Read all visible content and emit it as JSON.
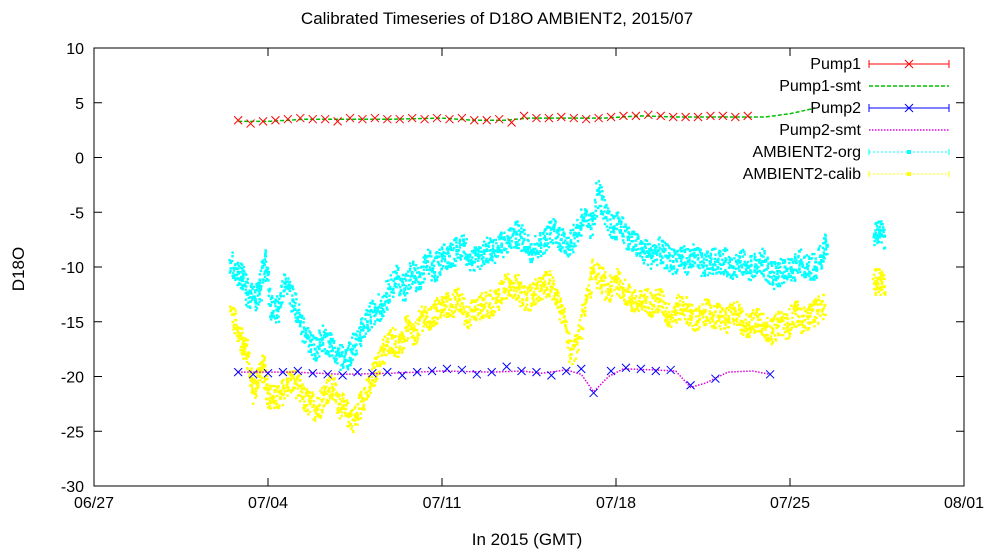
{
  "chart_data": {
    "type": "scatter",
    "title": "Calibrated Timeseries of D18O AMBIENT2, 2015/07",
    "xlabel": "In 2015 (GMT)",
    "ylabel": "D18O",
    "x_range_days": [
      0,
      35
    ],
    "xticks": [
      {
        "day": 0,
        "label": "06/27"
      },
      {
        "day": 7,
        "label": "07/04"
      },
      {
        "day": 14,
        "label": "07/11"
      },
      {
        "day": 21,
        "label": "07/18"
      },
      {
        "day": 28,
        "label": "07/25"
      },
      {
        "day": 35,
        "label": "08/01"
      }
    ],
    "ylim": [
      -30,
      10
    ],
    "yticks": [
      10,
      5,
      0,
      -5,
      -10,
      -15,
      -20,
      -25,
      -30
    ],
    "grid": false,
    "legend_position": "top-right",
    "series": [
      {
        "name": "Pump1",
        "style": "x-marker-errorbar",
        "color": "#ff0000",
        "points": [
          [
            5.8,
            3.4
          ],
          [
            6.3,
            3.1
          ],
          [
            6.8,
            3.3
          ],
          [
            7.3,
            3.4
          ],
          [
            7.8,
            3.5
          ],
          [
            8.3,
            3.6
          ],
          [
            8.8,
            3.5
          ],
          [
            9.3,
            3.5
          ],
          [
            9.8,
            3.3
          ],
          [
            10.3,
            3.6
          ],
          [
            10.8,
            3.5
          ],
          [
            11.3,
            3.6
          ],
          [
            11.8,
            3.5
          ],
          [
            12.3,
            3.5
          ],
          [
            12.8,
            3.6
          ],
          [
            13.3,
            3.5
          ],
          [
            13.8,
            3.6
          ],
          [
            14.3,
            3.5
          ],
          [
            14.8,
            3.6
          ],
          [
            15.3,
            3.4
          ],
          [
            15.8,
            3.4
          ],
          [
            16.3,
            3.5
          ],
          [
            16.8,
            3.2
          ],
          [
            17.3,
            3.8
          ],
          [
            17.8,
            3.6
          ],
          [
            18.3,
            3.6
          ],
          [
            18.8,
            3.7
          ],
          [
            19.3,
            3.6
          ],
          [
            19.8,
            3.5
          ],
          [
            20.3,
            3.6
          ],
          [
            20.8,
            3.7
          ],
          [
            21.3,
            3.8
          ],
          [
            21.8,
            3.8
          ],
          [
            22.3,
            3.9
          ],
          [
            22.8,
            3.8
          ],
          [
            23.3,
            3.7
          ],
          [
            23.8,
            3.7
          ],
          [
            24.3,
            3.7
          ],
          [
            24.8,
            3.8
          ],
          [
            25.3,
            3.8
          ],
          [
            25.8,
            3.7
          ],
          [
            26.3,
            3.8
          ]
        ]
      },
      {
        "name": "Pump1-smt",
        "style": "dashed-line",
        "color": "#00c000",
        "points": [
          [
            5.8,
            3.3
          ],
          [
            7.0,
            3.3
          ],
          [
            8.5,
            3.5
          ],
          [
            10.0,
            3.5
          ],
          [
            12.0,
            3.5
          ],
          [
            14.0,
            3.6
          ],
          [
            15.3,
            3.4
          ],
          [
            16.5,
            3.4
          ],
          [
            17.5,
            3.6
          ],
          [
            19.0,
            3.6
          ],
          [
            20.5,
            3.6
          ],
          [
            22.0,
            3.8
          ],
          [
            23.5,
            3.7
          ],
          [
            25.0,
            3.7
          ],
          [
            26.3,
            3.7
          ],
          [
            27.0,
            3.7
          ],
          [
            28.0,
            4.0
          ],
          [
            29.0,
            4.5
          ]
        ]
      },
      {
        "name": "Pump2",
        "style": "x-marker-errorbar",
        "color": "#0000ff",
        "points": [
          [
            5.8,
            -19.6
          ],
          [
            6.4,
            -19.8
          ],
          [
            7.0,
            -19.7
          ],
          [
            7.6,
            -19.6
          ],
          [
            8.2,
            -19.5
          ],
          [
            8.8,
            -19.7
          ],
          [
            9.4,
            -19.8
          ],
          [
            10.0,
            -19.9
          ],
          [
            10.6,
            -19.6
          ],
          [
            11.2,
            -19.7
          ],
          [
            11.8,
            -19.6
          ],
          [
            12.4,
            -19.9
          ],
          [
            13.0,
            -19.6
          ],
          [
            13.6,
            -19.5
          ],
          [
            14.2,
            -19.3
          ],
          [
            14.8,
            -19.4
          ],
          [
            15.4,
            -19.8
          ],
          [
            16.0,
            -19.6
          ],
          [
            16.6,
            -19.1
          ],
          [
            17.2,
            -19.5
          ],
          [
            17.8,
            -19.6
          ],
          [
            18.4,
            -19.9
          ],
          [
            19.0,
            -19.5
          ],
          [
            19.6,
            -19.3
          ],
          [
            20.1,
            -21.5
          ],
          [
            20.8,
            -19.5
          ],
          [
            21.4,
            -19.2
          ],
          [
            22.0,
            -19.3
          ],
          [
            22.6,
            -19.5
          ],
          [
            23.2,
            -19.4
          ],
          [
            24.0,
            -20.8
          ],
          [
            25.0,
            -20.2
          ],
          [
            27.2,
            -19.8
          ]
        ]
      },
      {
        "name": "Pump2-smt",
        "style": "dotted-line",
        "color": "#e000e0",
        "points": [
          [
            5.8,
            -19.6
          ],
          [
            8.0,
            -19.6
          ],
          [
            10.0,
            -19.8
          ],
          [
            12.0,
            -19.7
          ],
          [
            14.0,
            -19.5
          ],
          [
            16.0,
            -19.6
          ],
          [
            17.2,
            -19.5
          ],
          [
            18.0,
            -19.7
          ],
          [
            19.0,
            -19.4
          ],
          [
            19.6,
            -19.8
          ],
          [
            20.1,
            -21.4
          ],
          [
            20.7,
            -20.0
          ],
          [
            21.3,
            -19.3
          ],
          [
            22.5,
            -19.4
          ],
          [
            23.4,
            -19.5
          ],
          [
            24.0,
            -21.0
          ],
          [
            24.6,
            -20.6
          ],
          [
            25.5,
            -19.6
          ],
          [
            26.5,
            -19.5
          ],
          [
            27.2,
            -19.8
          ]
        ]
      },
      {
        "name": "AMBIENT2-org",
        "style": "dense-dots",
        "color": "#00ffff",
        "points": [
          [
            5.5,
            -9.6
          ],
          [
            5.8,
            -10.5
          ],
          [
            6.0,
            -11.0
          ],
          [
            6.2,
            -12.5
          ],
          [
            6.5,
            -13.0
          ],
          [
            6.7,
            -12.0
          ],
          [
            6.9,
            -9.0
          ],
          [
            7.1,
            -13.5
          ],
          [
            7.4,
            -14.0
          ],
          [
            7.7,
            -11.5
          ],
          [
            8.0,
            -13.0
          ],
          [
            8.3,
            -15.0
          ],
          [
            8.6,
            -16.5
          ],
          [
            8.9,
            -17.5
          ],
          [
            9.2,
            -16.5
          ],
          [
            9.5,
            -17.0
          ],
          [
            9.8,
            -18.0
          ],
          [
            10.1,
            -18.5
          ],
          [
            10.4,
            -17.5
          ],
          [
            10.7,
            -16.5
          ],
          [
            11.0,
            -15.0
          ],
          [
            11.3,
            -14.0
          ],
          [
            11.6,
            -13.5
          ],
          [
            11.9,
            -12.0
          ],
          [
            12.2,
            -11.0
          ],
          [
            12.5,
            -12.0
          ],
          [
            12.8,
            -10.5
          ],
          [
            13.1,
            -11.5
          ],
          [
            13.4,
            -9.5
          ],
          [
            13.7,
            -10.5
          ],
          [
            14.0,
            -9.0
          ],
          [
            14.3,
            -9.0
          ],
          [
            14.6,
            -8.5
          ],
          [
            14.9,
            -8.0
          ],
          [
            15.2,
            -9.5
          ],
          [
            15.5,
            -9.0
          ],
          [
            15.8,
            -8.5
          ],
          [
            16.1,
            -8.5
          ],
          [
            16.4,
            -8.0
          ],
          [
            16.7,
            -7.5
          ],
          [
            17.0,
            -7.0
          ],
          [
            17.3,
            -7.5
          ],
          [
            17.6,
            -8.5
          ],
          [
            17.9,
            -8.0
          ],
          [
            18.2,
            -7.5
          ],
          [
            18.5,
            -6.5
          ],
          [
            18.8,
            -7.5
          ],
          [
            19.1,
            -8.0
          ],
          [
            19.4,
            -7.0
          ],
          [
            19.7,
            -5.5
          ],
          [
            20.0,
            -6.5
          ],
          [
            20.3,
            -3.0
          ],
          [
            20.6,
            -5.5
          ],
          [
            20.9,
            -6.5
          ],
          [
            21.2,
            -6.0
          ],
          [
            21.5,
            -7.5
          ],
          [
            21.8,
            -8.0
          ],
          [
            22.1,
            -8.5
          ],
          [
            22.4,
            -9.0
          ],
          [
            22.7,
            -8.5
          ],
          [
            23.0,
            -9.0
          ],
          [
            23.3,
            -9.5
          ],
          [
            23.6,
            -9.0
          ],
          [
            23.9,
            -9.5
          ],
          [
            24.2,
            -9.0
          ],
          [
            24.5,
            -10.0
          ],
          [
            24.8,
            -9.5
          ],
          [
            25.1,
            -9.5
          ],
          [
            25.4,
            -9.5
          ],
          [
            25.7,
            -10.0
          ],
          [
            26.0,
            -9.5
          ],
          [
            26.3,
            -10.0
          ],
          [
            26.6,
            -10.0
          ],
          [
            26.9,
            -9.5
          ],
          [
            27.2,
            -10.5
          ],
          [
            27.5,
            -11.0
          ],
          [
            27.8,
            -10.0
          ],
          [
            28.1,
            -10.5
          ],
          [
            28.4,
            -9.5
          ],
          [
            28.7,
            -10.0
          ],
          [
            29.0,
            -10.0
          ],
          [
            29.3,
            -9.0
          ],
          [
            29.5,
            -8.0
          ],
          [
            31.4,
            -7.0
          ],
          [
            31.6,
            -6.8
          ],
          [
            31.8,
            -7.2
          ]
        ]
      },
      {
        "name": "AMBIENT2-calib",
        "style": "dense-dots",
        "color": "#ffff00",
        "points": [
          [
            5.5,
            -14.0
          ],
          [
            5.8,
            -16.0
          ],
          [
            6.0,
            -17.0
          ],
          [
            6.2,
            -18.0
          ],
          [
            6.4,
            -21.5
          ],
          [
            6.6,
            -20.0
          ],
          [
            6.8,
            -19.0
          ],
          [
            7.0,
            -21.5
          ],
          [
            7.2,
            -22.0
          ],
          [
            7.5,
            -22.0
          ],
          [
            7.8,
            -20.5
          ],
          [
            8.1,
            -20.5
          ],
          [
            8.4,
            -22.0
          ],
          [
            8.7,
            -22.5
          ],
          [
            9.0,
            -23.0
          ],
          [
            9.3,
            -21.5
          ],
          [
            9.6,
            -21.0
          ],
          [
            9.9,
            -22.5
          ],
          [
            10.2,
            -23.5
          ],
          [
            10.5,
            -24.0
          ],
          [
            10.8,
            -22.0
          ],
          [
            11.1,
            -21.0
          ],
          [
            11.4,
            -19.0
          ],
          [
            11.7,
            -17.5
          ],
          [
            12.0,
            -16.5
          ],
          [
            12.3,
            -17.5
          ],
          [
            12.6,
            -15.5
          ],
          [
            12.9,
            -16.5
          ],
          [
            13.2,
            -14.5
          ],
          [
            13.5,
            -15.0
          ],
          [
            13.8,
            -14.0
          ],
          [
            14.1,
            -13.5
          ],
          [
            14.4,
            -13.5
          ],
          [
            14.7,
            -13.0
          ],
          [
            15.0,
            -14.5
          ],
          [
            15.3,
            -14.0
          ],
          [
            15.6,
            -13.5
          ],
          [
            15.9,
            -13.5
          ],
          [
            16.2,
            -13.0
          ],
          [
            16.5,
            -12.0
          ],
          [
            16.8,
            -11.5
          ],
          [
            17.1,
            -12.0
          ],
          [
            17.4,
            -13.0
          ],
          [
            17.7,
            -12.5
          ],
          [
            18.0,
            -12.0
          ],
          [
            18.3,
            -11.5
          ],
          [
            18.6,
            -12.5
          ],
          [
            18.9,
            -15.0
          ],
          [
            19.2,
            -18.0
          ],
          [
            19.5,
            -16.5
          ],
          [
            19.8,
            -13.0
          ],
          [
            20.1,
            -10.5
          ],
          [
            20.4,
            -11.0
          ],
          [
            20.7,
            -12.5
          ],
          [
            21.0,
            -11.0
          ],
          [
            21.3,
            -12.0
          ],
          [
            21.6,
            -13.0
          ],
          [
            21.9,
            -13.5
          ],
          [
            22.2,
            -13.0
          ],
          [
            22.5,
            -13.5
          ],
          [
            22.8,
            -13.0
          ],
          [
            23.1,
            -14.5
          ],
          [
            23.4,
            -14.0
          ],
          [
            23.7,
            -13.5
          ],
          [
            24.0,
            -14.5
          ],
          [
            24.3,
            -15.0
          ],
          [
            24.6,
            -14.0
          ],
          [
            24.9,
            -14.5
          ],
          [
            25.2,
            -14.5
          ],
          [
            25.5,
            -15.0
          ],
          [
            25.8,
            -14.0
          ],
          [
            26.1,
            -15.0
          ],
          [
            26.4,
            -15.5
          ],
          [
            26.7,
            -14.5
          ],
          [
            27.0,
            -15.5
          ],
          [
            27.3,
            -16.0
          ],
          [
            27.6,
            -15.0
          ],
          [
            27.9,
            -15.5
          ],
          [
            28.2,
            -14.0
          ],
          [
            28.5,
            -15.0
          ],
          [
            28.8,
            -14.5
          ],
          [
            29.1,
            -14.0
          ],
          [
            29.4,
            -13.5
          ],
          [
            31.4,
            -11.5
          ],
          [
            31.6,
            -11.0
          ],
          [
            31.8,
            -11.8
          ]
        ]
      }
    ]
  }
}
